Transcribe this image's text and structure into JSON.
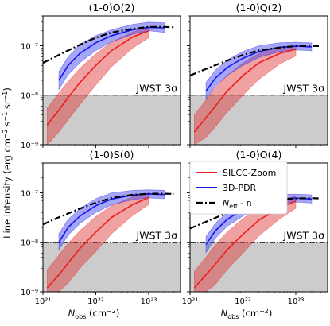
{
  "figure": {
    "ylabel": "Line Intensity (erg cm⁻² s⁻¹ sr⁻¹)",
    "xlabel": "N_obs (cm⁻²)",
    "threshold_label": "JWST 3σ",
    "legend": [
      {
        "label": "SILCC-Zoom",
        "color": "#ee1c1c",
        "style": "solid"
      },
      {
        "label": "3D-PDR",
        "color": "#1515ee",
        "style": "solid"
      },
      {
        "label": "N_eff - n",
        "color": "#000000",
        "style": "dashdot"
      }
    ]
  },
  "chart_data": [
    {
      "type": "line",
      "title": "(1-0)O(2)",
      "x_scale": "log",
      "y_scale": "log",
      "xlim": [
        1e+21,
        4e+23
      ],
      "ylim": [
        1e-09,
        4e-07
      ],
      "threshold": 1e-08,
      "series": [
        {
          "name": "SILCC-Zoom",
          "x": [
            1.2e+21,
            2e+21,
            3e+21,
            5e+21,
            1e+22,
            2e+22,
            5e+22,
            1e+23
          ],
          "y": [
            2.5e-09,
            5e-09,
            9e-09,
            1.8e-08,
            4e-08,
            8e-08,
            1.5e-07,
            2e-07
          ],
          "lo": [
            1e-09,
            1.8e-09,
            3.2e-09,
            6.5e-09,
            1.6e-08,
            3.8e-08,
            9e-08,
            1.45e-07
          ],
          "hi": [
            5.5e-09,
            1.1e-08,
            1.9e-08,
            3.5e-08,
            6.8e-08,
            1.2e-07,
            1.9e-07,
            2.4e-07
          ]
        },
        {
          "name": "3D-PDR",
          "x": [
            2e+21,
            3e+21,
            5e+21,
            1e+22,
            2e+22,
            5e+22,
            1e+23,
            2e+23
          ],
          "y": [
            2e-08,
            4e-08,
            7e-08,
            1.15e-07,
            1.6e-07,
            2.1e-07,
            2.35e-07,
            2.3e-07
          ],
          "lo": [
            1.3e-08,
            2.6e-08,
            4.6e-08,
            8e-08,
            1.2e-07,
            1.7e-07,
            2e-07,
            1.85e-07
          ],
          "hi": [
            3e-08,
            6e-08,
            1.05e-07,
            1.6e-07,
            2.1e-07,
            2.7e-07,
            3e-07,
            2.9e-07
          ]
        },
        {
          "name": "N_eff - n",
          "x": [
            1e+21,
            2e+21,
            5e+21,
            1e+22,
            2e+22,
            5e+22,
            1e+23,
            2e+23,
            3e+23
          ],
          "y": [
            4.5e-08,
            6.5e-08,
            1.05e-07,
            1.45e-07,
            1.85e-07,
            2.2e-07,
            2.4e-07,
            2.4e-07,
            2.35e-07
          ]
        }
      ]
    },
    {
      "type": "line",
      "title": "(1-0)Q(2)",
      "x_scale": "log",
      "y_scale": "log",
      "xlim": [
        1e+21,
        4e+23
      ],
      "ylim": [
        1e-09,
        4e-07
      ],
      "threshold": 1e-08,
      "series": [
        {
          "name": "SILCC-Zoom",
          "x": [
            1.2e+21,
            2e+21,
            3e+21,
            5e+21,
            1e+22,
            2e+22,
            5e+22,
            1e+23
          ],
          "y": [
            1.8e-09,
            3.5e-09,
            6e-09,
            1.2e-08,
            2.5e-08,
            4.5e-08,
            7e-08,
            8.5e-08
          ],
          "lo": [
            1e-09,
            1.4e-09,
            2.3e-09,
            4.5e-09,
            1e-08,
            2.1e-08,
            4.3e-08,
            6.2e-08
          ],
          "hi": [
            4e-09,
            8e-09,
            1.4e-08,
            2.5e-08,
            4.5e-08,
            7e-08,
            9.5e-08,
            1e-07
          ]
        },
        {
          "name": "3D-PDR",
          "x": [
            2e+21,
            3e+21,
            5e+21,
            1e+22,
            2e+22,
            5e+22,
            1e+23,
            2e+23
          ],
          "y": [
            1.2e-08,
            2.2e-08,
            3.6e-08,
            5.6e-08,
            7.6e-08,
            9.3e-08,
            9.8e-08,
            9.5e-08
          ],
          "lo": [
            8.2e-09,
            1.5e-08,
            2.5e-08,
            4e-08,
            5.8e-08,
            7.6e-08,
            8.2e-08,
            7.9e-08
          ],
          "hi": [
            1.8e-08,
            3.2e-08,
            5.1e-08,
            7.7e-08,
            1e-07,
            1.15e-07,
            1.18e-07,
            1.14e-07
          ]
        },
        {
          "name": "N_eff - n",
          "x": [
            1e+21,
            2e+21,
            5e+21,
            1e+22,
            2e+22,
            5e+22,
            1e+23,
            2e+23,
            3e+23
          ],
          "y": [
            2.5e-08,
            3.4e-08,
            5e-08,
            6.5e-08,
            8e-08,
            9.2e-08,
            9.8e-08,
            9.9e-08,
            9.8e-08
          ]
        }
      ]
    },
    {
      "type": "line",
      "title": "(1-0)S(0)",
      "x_scale": "log",
      "y_scale": "log",
      "xlim": [
        1e+21,
        4e+23
      ],
      "ylim": [
        1e-09,
        4e-07
      ],
      "threshold": 1e-08,
      "series": [
        {
          "name": "SILCC-Zoom",
          "x": [
            1.2e+21,
            2e+21,
            3e+21,
            5e+21,
            1e+22,
            2e+22,
            5e+22,
            1e+23
          ],
          "y": [
            1.2e-09,
            2.2e-09,
            3.8e-09,
            7.5e-09,
            1.6e-08,
            3.2e-08,
            5.8e-08,
            8e-08
          ],
          "lo": [
            1e-09,
            1e-09,
            1.5e-09,
            3e-09,
            6.5e-09,
            1.5e-08,
            3.5e-08,
            5.8e-08
          ],
          "hi": [
            2.8e-09,
            5.5e-09,
            9.5e-09,
            1.7e-08,
            3.3e-08,
            5.5e-08,
            8.3e-08,
            9.8e-08
          ]
        },
        {
          "name": "3D-PDR",
          "x": [
            2e+21,
            3e+21,
            5e+21,
            1e+22,
            2e+22,
            5e+22,
            1e+23,
            2e+23
          ],
          "y": [
            1e-08,
            2e-08,
            3.4e-08,
            5.5e-08,
            7.5e-08,
            9e-08,
            9.5e-08,
            9.2e-08
          ],
          "lo": [
            7e-09,
            1.4e-08,
            2.4e-08,
            4e-08,
            5.7e-08,
            7.3e-08,
            7.9e-08,
            7.6e-08
          ],
          "hi": [
            1.5e-08,
            2.9e-08,
            4.8e-08,
            7.6e-08,
            1e-07,
            1.12e-07,
            1.15e-07,
            1.12e-07
          ]
        },
        {
          "name": "N_eff - n",
          "x": [
            1e+21,
            2e+21,
            5e+21,
            1e+22,
            2e+22,
            5e+22,
            1e+23,
            2e+23,
            3e+23
          ],
          "y": [
            2.3e-08,
            3.2e-08,
            4.8e-08,
            6.3e-08,
            7.9e-08,
            9.1e-08,
            9.6e-08,
            9.6e-08,
            9.5e-08
          ]
        }
      ]
    },
    {
      "type": "line",
      "title": "(1-0)O(4)",
      "x_scale": "log",
      "y_scale": "log",
      "xlim": [
        1e+21,
        4e+23
      ],
      "ylim": [
        1e-09,
        4e-07
      ],
      "threshold": 1e-08,
      "series": [
        {
          "name": "SILCC-Zoom",
          "x": [
            1.2e+21,
            2e+21,
            3e+21,
            5e+21,
            1e+22,
            2e+22,
            5e+22,
            1e+23
          ],
          "y": [
            1.2e-09,
            2.2e-09,
            3.6e-09,
            7e-09,
            1.45e-08,
            2.8e-08,
            5e-08,
            6.8e-08
          ],
          "lo": [
            1e-09,
            1e-09,
            1.4e-09,
            2.8e-09,
            6e-09,
            1.35e-08,
            3e-08,
            4.9e-08
          ],
          "hi": [
            2.6e-09,
            5e-09,
            8.8e-09,
            1.6e-08,
            3e-08,
            5e-08,
            7.3e-08,
            8.5e-08
          ]
        },
        {
          "name": "3D-PDR",
          "x": [
            2e+21,
            3e+21,
            5e+21,
            1e+22,
            2e+22,
            5e+22,
            1e+23,
            2e+23
          ],
          "y": [
            9e-09,
            1.7e-08,
            2.9e-08,
            4.6e-08,
            6.3e-08,
            7.5e-08,
            7.8e-08,
            7.5e-08
          ],
          "lo": [
            6.2e-09,
            1.2e-08,
            2.1e-08,
            3.4e-08,
            4.8e-08,
            6.1e-08,
            6.5e-08,
            6.2e-08
          ],
          "hi": [
            1.3e-08,
            2.4e-08,
            4e-08,
            6.2e-08,
            8.3e-08,
            9.3e-08,
            9.4e-08,
            9.1e-08
          ]
        },
        {
          "name": "N_eff - n",
          "x": [
            1e+21,
            2e+21,
            5e+21,
            1e+22,
            2e+22,
            5e+22,
            1e+23,
            2e+23,
            3e+23
          ],
          "y": [
            1.9e-08,
            2.6e-08,
            3.9e-08,
            5.1e-08,
            6.3e-08,
            7.3e-08,
            7.7e-08,
            7.8e-08,
            7.7e-08
          ]
        }
      ]
    }
  ]
}
